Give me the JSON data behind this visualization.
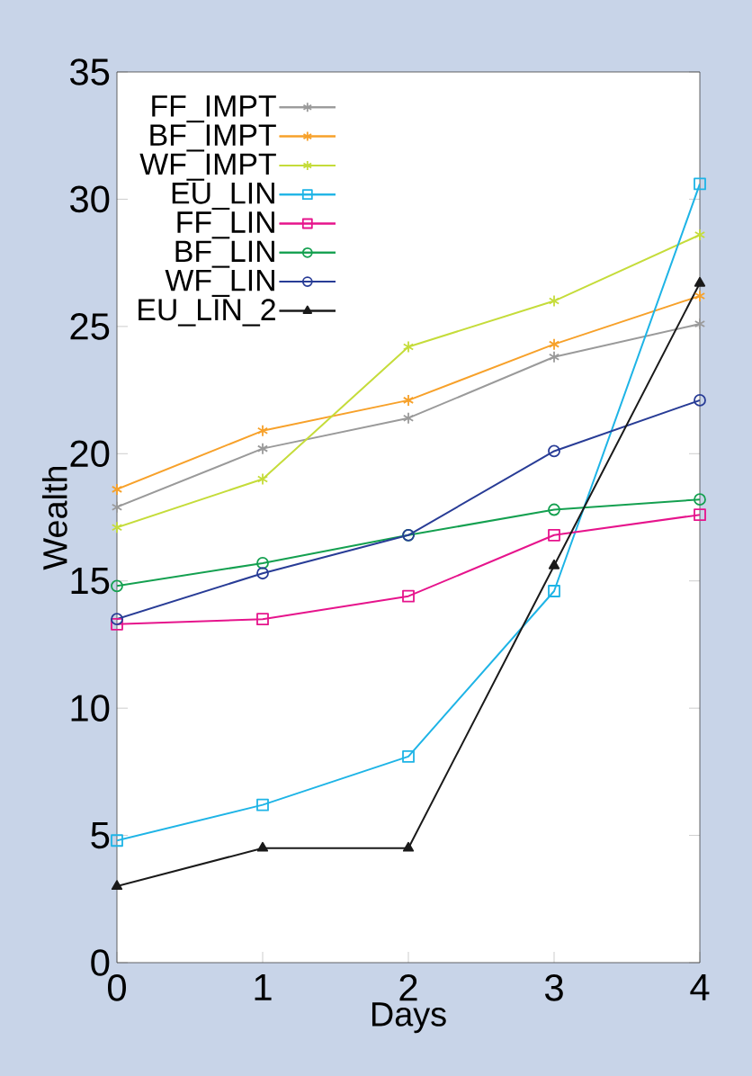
{
  "chart_data": {
    "type": "line",
    "xlabel": "Days",
    "ylabel": "Wealth",
    "x": [
      0,
      1,
      2,
      3,
      4
    ],
    "xlim": [
      0,
      4
    ],
    "xticks": [
      0,
      1,
      2,
      3,
      4
    ],
    "ylim": [
      0,
      35
    ],
    "yticks": [
      0,
      5,
      10,
      15,
      20,
      25,
      30,
      35
    ],
    "grid": false,
    "legend": "top left",
    "series": [
      {
        "name": "FF_IMPT",
        "color": "#9a9a9a",
        "marker": "cross",
        "values": [
          17.9,
          20.2,
          21.4,
          23.8,
          25.1
        ]
      },
      {
        "name": "BF_IMPT",
        "color": "#f7a12a",
        "marker": "cross",
        "values": [
          18.6,
          20.9,
          22.1,
          24.3,
          26.2
        ]
      },
      {
        "name": "WF_IMPT",
        "color": "#c5dc3a",
        "marker": "cross",
        "values": [
          17.1,
          19.0,
          24.2,
          26.0,
          28.6
        ]
      },
      {
        "name": "EU_LIN",
        "color": "#1eb4e6",
        "marker": "square",
        "values": [
          4.8,
          6.2,
          8.1,
          14.6,
          30.6
        ]
      },
      {
        "name": "FF_LIN",
        "color": "#e6148c",
        "marker": "square",
        "values": [
          13.3,
          13.5,
          14.4,
          16.8,
          17.6
        ]
      },
      {
        "name": "BF_LIN",
        "color": "#14a050",
        "marker": "circle",
        "values": [
          14.8,
          15.7,
          16.8,
          17.8,
          18.2
        ]
      },
      {
        "name": "WF_LIN",
        "color": "#283c96",
        "marker": "circle",
        "values": [
          13.5,
          15.3,
          16.8,
          20.1,
          22.1
        ]
      },
      {
        "name": "EU_LIN_2",
        "color": "#1a1a1a",
        "marker": "triangle",
        "values": [
          3.0,
          4.5,
          4.5,
          15.6,
          26.7
        ]
      }
    ]
  }
}
